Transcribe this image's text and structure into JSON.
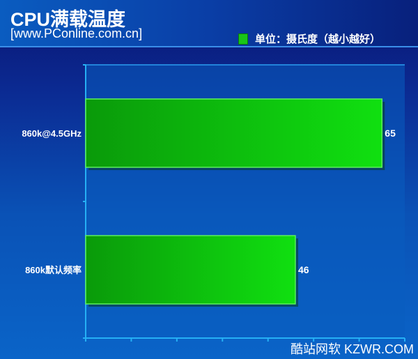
{
  "chart_data": {
    "type": "bar",
    "orientation": "horizontal",
    "title": "CPU满载温度",
    "subtitle": "[www.PConline.com.cn]",
    "legend": {
      "label": "单位：摄氏度（越小越好）",
      "position": "top-right",
      "color": "#19c619"
    },
    "categories": [
      "860k@4.5GHz",
      "860k默认频率"
    ],
    "series": [
      {
        "values": [
          65,
          46
        ],
        "color": "#19c619"
      }
    ],
    "xlim": [
      0,
      70
    ],
    "x_tick_step": 10,
    "tick_labels_shown": false,
    "grid": false
  },
  "watermark": "酷站网软 KZWR.COM"
}
